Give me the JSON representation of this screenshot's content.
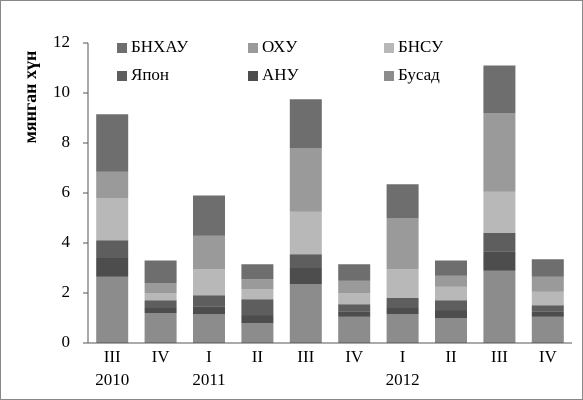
{
  "chart_data": {
    "type": "stacked_bar",
    "y_label": "мянган хүн",
    "categories": [
      "III",
      "IV",
      "I",
      "II",
      "III",
      "IV",
      "I",
      "II",
      "III",
      "IV"
    ],
    "category_years": [
      "2010",
      null,
      "2011",
      null,
      null,
      null,
      "2012",
      null,
      null,
      null
    ],
    "series": [
      {
        "name": "Бусад",
        "color": "#8c8c8c",
        "values": [
          2.65,
          1.2,
          1.15,
          0.8,
          2.35,
          1.05,
          1.15,
          1.0,
          2.9,
          1.05
        ]
      },
      {
        "name": "АНУ",
        "color": "#4d4d4d",
        "values": [
          0.75,
          0.2,
          0.3,
          0.3,
          0.65,
          0.2,
          0.25,
          0.3,
          0.75,
          0.2
        ]
      },
      {
        "name": "Япон",
        "color": "#5e5e5e",
        "values": [
          0.7,
          0.3,
          0.45,
          0.65,
          0.55,
          0.3,
          0.4,
          0.4,
          0.75,
          0.25
        ]
      },
      {
        "name": "БНСУ",
        "color": "#b8b8b8",
        "values": [
          1.7,
          0.3,
          1.05,
          0.4,
          1.7,
          0.45,
          1.15,
          0.55,
          1.65,
          0.55
        ]
      },
      {
        "name": "ОХУ",
        "color": "#9a9a9a",
        "values": [
          1.05,
          0.4,
          1.35,
          0.4,
          2.55,
          0.5,
          2.05,
          0.45,
          3.15,
          0.6
        ]
      },
      {
        "name": "БНХАУ",
        "color": "#6e6e6e",
        "values": [
          2.3,
          0.9,
          1.6,
          0.6,
          1.95,
          0.65,
          1.35,
          0.6,
          1.9,
          0.7
        ]
      }
    ],
    "legend_order": [
      5,
      4,
      3,
      2,
      1,
      0
    ],
    "ylim": [
      0,
      12
    ],
    "yticks": [
      0,
      2,
      4,
      6,
      8,
      10,
      12
    ],
    "grid": false
  }
}
